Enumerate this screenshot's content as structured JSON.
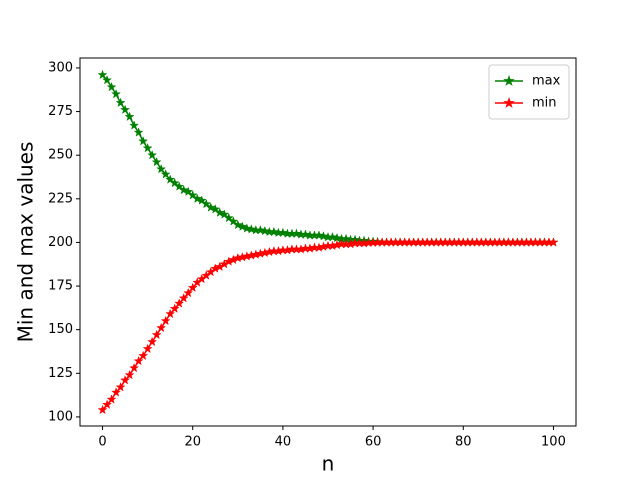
{
  "chart_data": {
    "type": "line",
    "x_label": "n",
    "y_label": "Min and max values",
    "x": [
      0,
      1,
      2,
      3,
      4,
      5,
      6,
      7,
      8,
      9,
      10,
      11,
      12,
      13,
      14,
      15,
      16,
      17,
      18,
      19,
      20,
      21,
      22,
      23,
      24,
      25,
      26,
      27,
      28,
      29,
      30,
      31,
      32,
      33,
      34,
      35,
      36,
      37,
      38,
      39,
      40,
      41,
      42,
      43,
      44,
      45,
      46,
      47,
      48,
      49,
      50,
      51,
      52,
      53,
      54,
      55,
      56,
      57,
      58,
      59,
      60,
      61,
      62,
      63,
      64,
      65,
      66,
      67,
      68,
      69,
      70,
      71,
      72,
      73,
      74,
      75,
      76,
      77,
      78,
      79,
      80,
      81,
      82,
      83,
      84,
      85,
      86,
      87,
      88,
      89,
      90,
      91,
      92,
      93,
      94,
      95,
      96,
      97,
      98,
      99,
      100
    ],
    "series": [
      {
        "name": "max",
        "color": "#008000",
        "values": [
          296,
          293,
          289,
          285,
          280,
          276,
          272,
          267,
          263,
          258,
          254,
          250,
          246,
          242,
          239,
          236,
          234,
          232,
          230,
          229,
          227,
          225,
          224,
          222,
          220,
          219,
          217,
          216,
          214,
          212,
          210,
          209,
          208,
          207.5,
          207,
          207,
          206.5,
          206,
          206,
          205.5,
          205.5,
          205,
          205,
          205,
          204.5,
          204.5,
          204,
          204,
          204,
          203.5,
          203,
          203,
          202.5,
          202,
          202,
          201.5,
          201.5,
          201,
          201,
          200.5,
          200.5,
          200.3,
          200,
          200,
          200,
          200,
          200,
          200,
          200,
          200,
          200,
          200,
          200,
          200,
          200,
          200,
          200,
          200,
          200,
          200,
          200,
          200,
          200,
          200,
          200,
          200,
          200,
          200,
          200,
          200,
          200,
          200,
          200,
          200,
          200,
          200,
          200,
          200,
          200,
          200,
          200
        ]
      },
      {
        "name": "min",
        "color": "#ff0000",
        "values": [
          104,
          107,
          110,
          114,
          117,
          121,
          124,
          128,
          132,
          135,
          139,
          143,
          147,
          151,
          155,
          159,
          162,
          165,
          168,
          171,
          174,
          177,
          179,
          181,
          183,
          185,
          186,
          187.5,
          189,
          190,
          191,
          191.5,
          192,
          192.5,
          193,
          193.5,
          194,
          194.5,
          195,
          195,
          195.5,
          195.5,
          196,
          196,
          196,
          196.5,
          196.5,
          197,
          197,
          197.5,
          198,
          198,
          198.5,
          199,
          199,
          199,
          199.5,
          199.5,
          199.5,
          199.7,
          199.8,
          199.9,
          200,
          200,
          200,
          200,
          200,
          200,
          200,
          200,
          200,
          200,
          200,
          200,
          200,
          200,
          200,
          200,
          200,
          200,
          200,
          200,
          200,
          200,
          200,
          200,
          200,
          200,
          200,
          200,
          200,
          200,
          200,
          200,
          200,
          200,
          200,
          200,
          200,
          200,
          200
        ]
      }
    ],
    "xlim": [
      -5,
      105
    ],
    "ylim": [
      94.8,
      305.7
    ],
    "xticks": [
      0,
      20,
      40,
      60,
      80,
      100
    ],
    "yticks": [
      100,
      125,
      150,
      175,
      200,
      225,
      250,
      275,
      300
    ],
    "marker": "star",
    "legend": "upper right",
    "grid": false
  }
}
